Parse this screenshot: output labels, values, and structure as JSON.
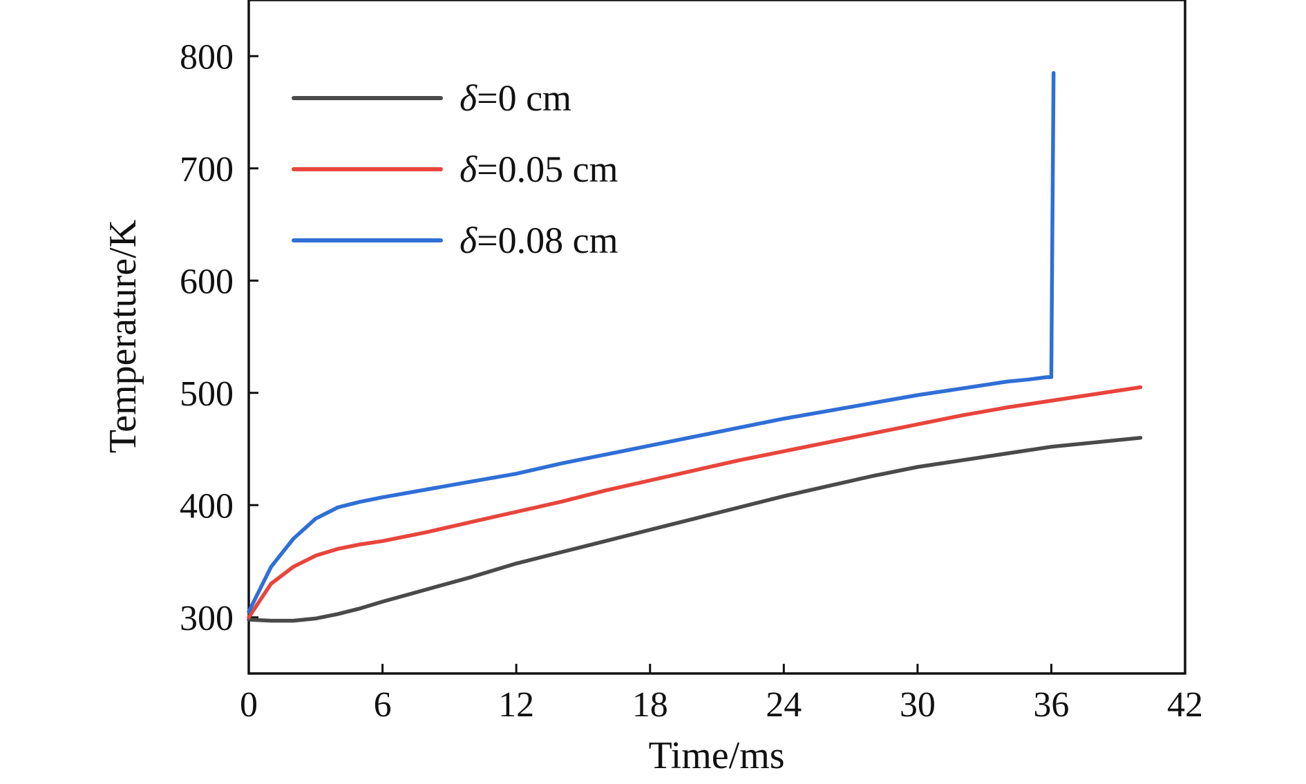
{
  "chart_data": {
    "type": "line",
    "title": "",
    "xlabel": "Time/ms",
    "ylabel": "Temperature/K",
    "xlim": [
      0,
      42
    ],
    "ylim": [
      250,
      850
    ],
    "xticks": [
      0,
      6,
      12,
      18,
      24,
      30,
      36,
      42
    ],
    "yticks": [
      300,
      400,
      500,
      600,
      700,
      800
    ],
    "grid": false,
    "legend_position": "top-left",
    "series": [
      {
        "name": "δ=0 cm",
        "legend_symbol": "δ",
        "legend_rest": "=0 cm",
        "color": "#4a4a4a",
        "x": [
          0,
          1,
          2,
          3,
          4,
          5,
          6,
          8,
          10,
          12,
          14,
          16,
          18,
          20,
          22,
          24,
          26,
          28,
          30,
          32,
          34,
          36,
          38,
          40
        ],
        "y": [
          298,
          297,
          297,
          299,
          303,
          308,
          314,
          325,
          336,
          348,
          358,
          368,
          378,
          388,
          398,
          408,
          417,
          426,
          434,
          440,
          446,
          452,
          456,
          460
        ]
      },
      {
        "name": "δ=0.05 cm",
        "legend_symbol": "δ",
        "legend_rest": "=0.05 cm",
        "color": "#e8453c",
        "x": [
          0,
          0.5,
          1,
          2,
          3,
          4,
          5,
          6,
          8,
          10,
          12,
          14,
          16,
          18,
          20,
          22,
          24,
          26,
          28,
          30,
          32,
          34,
          36,
          38,
          40
        ],
        "y": [
          300,
          315,
          330,
          345,
          355,
          361,
          365,
          368,
          376,
          385,
          394,
          403,
          413,
          422,
          431,
          440,
          448,
          456,
          464,
          472,
          480,
          487,
          493,
          499,
          505
        ]
      },
      {
        "name": "δ=0.08 cm",
        "legend_symbol": "δ",
        "legend_rest": "=0.08 cm",
        "color": "#2f6fd6",
        "x": [
          0,
          0.5,
          1,
          2,
          3,
          4,
          5,
          6,
          8,
          10,
          12,
          14,
          16,
          18,
          20,
          22,
          24,
          26,
          28,
          30,
          32,
          34,
          35,
          35.8,
          36,
          36.05,
          36.1
        ],
        "y": [
          305,
          325,
          345,
          370,
          388,
          398,
          403,
          407,
          414,
          421,
          428,
          437,
          445,
          453,
          461,
          469,
          477,
          484,
          491,
          498,
          504,
          510,
          512,
          514,
          514,
          650,
          785
        ]
      }
    ]
  }
}
